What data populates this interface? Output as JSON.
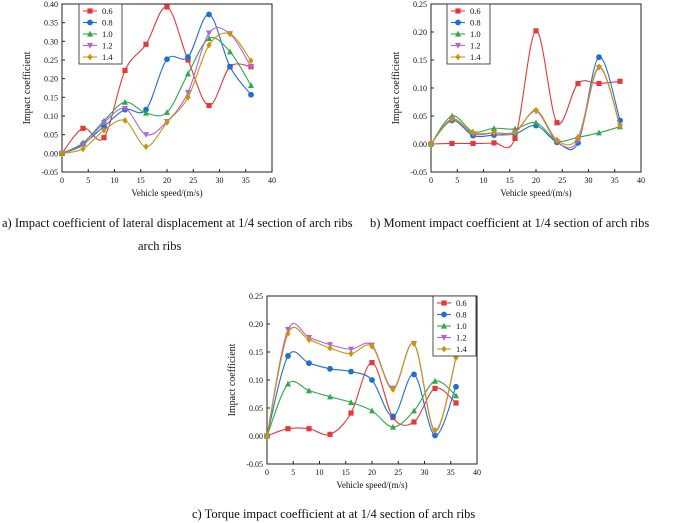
{
  "captions": {
    "a_line1": "a) Impact coefficient of lateral displacement at 1/4 section of arch ribs",
    "a_line2": "arch ribs",
    "b": "b) Moment impact coefficient at 1/4 section of arch ribs",
    "c": "c) Torque impact coefficient at at 1/4 section of arch ribs"
  },
  "chart_data": [
    {
      "type": "line",
      "id": "a",
      "xlabel": "Vehicle speed/(m/s)",
      "ylabel": "Impact coefficient",
      "xlim": [
        0,
        40
      ],
      "ylim": [
        -0.05,
        0.4
      ],
      "xticks": [
        "0",
        "5",
        "10",
        "15",
        "20",
        "25",
        "30",
        "35",
        "40"
      ],
      "yticks": [
        "-0.05",
        "0.00",
        "0.05",
        "0.10",
        "0.15",
        "0.20",
        "0.25",
        "0.30",
        "0.35",
        "0.40"
      ],
      "x": [
        0,
        4,
        8,
        12,
        16,
        20,
        24,
        28,
        32,
        36
      ],
      "series": [
        {
          "name": "0.6",
          "color": "#e5383b",
          "marker": "square",
          "values": [
            0.0,
            0.067,
            0.042,
            0.222,
            0.292,
            0.392,
            0.25,
            0.128,
            0.232,
            0.232
          ]
        },
        {
          "name": "0.8",
          "color": "#1f6fd1",
          "marker": "circle",
          "values": [
            0.0,
            0.025,
            0.072,
            0.117,
            0.117,
            0.252,
            0.258,
            0.372,
            0.232,
            0.157
          ]
        },
        {
          "name": "1.0",
          "color": "#2ea84a",
          "marker": "triangle",
          "values": [
            0.0,
            0.028,
            0.087,
            0.137,
            0.108,
            0.11,
            0.213,
            0.308,
            0.272,
            0.182
          ]
        },
        {
          "name": "1.2",
          "color": "#b263d8",
          "marker": "tri-down",
          "values": [
            0.0,
            0.022,
            0.082,
            0.12,
            0.05,
            0.085,
            0.163,
            0.322,
            0.32,
            0.232
          ]
        },
        {
          "name": "1.4",
          "color": "#c9940c",
          "marker": "diamond",
          "values": [
            0.0,
            0.012,
            0.062,
            0.088,
            0.018,
            0.083,
            0.15,
            0.29,
            0.32,
            0.248
          ]
        }
      ]
    },
    {
      "type": "line",
      "id": "b",
      "xlabel": "Vehicle speed/(m/s)",
      "ylabel": "Impact coefficient",
      "xlim": [
        0,
        40
      ],
      "ylim": [
        -0.05,
        0.25
      ],
      "xticks": [
        "0",
        "5",
        "10",
        "15",
        "20",
        "25",
        "30",
        "35",
        "40"
      ],
      "yticks": [
        "-0.05",
        "0.00",
        "0.05",
        "0.10",
        "0.15",
        "0.20",
        "0.25"
      ],
      "x": [
        0,
        4,
        8,
        12,
        16,
        20,
        24,
        28,
        32,
        36
      ],
      "series": [
        {
          "name": "0.6",
          "color": "#e5383b",
          "marker": "square",
          "values": [
            0.0,
            0.001,
            0.001,
            0.002,
            0.01,
            0.202,
            0.038,
            0.108,
            0.108,
            0.112
          ]
        },
        {
          "name": "0.8",
          "color": "#1f6fd1",
          "marker": "circle",
          "values": [
            0.0,
            0.042,
            0.015,
            0.016,
            0.018,
            0.033,
            0.003,
            0.002,
            0.155,
            0.042
          ]
        },
        {
          "name": "1.0",
          "color": "#2ea84a",
          "marker": "triangle",
          "values": [
            0.0,
            0.05,
            0.022,
            0.028,
            0.027,
            0.038,
            0.006,
            0.012,
            0.02,
            0.031
          ]
        },
        {
          "name": "1.2",
          "color": "#b263d8",
          "marker": "tri-down",
          "values": [
            0.0,
            0.045,
            0.018,
            0.02,
            0.022,
            0.058,
            0.004,
            0.006,
            0.136,
            0.032
          ]
        },
        {
          "name": "1.4",
          "color": "#c9940c",
          "marker": "diamond",
          "values": [
            0.0,
            0.044,
            0.02,
            0.02,
            0.02,
            0.06,
            0.007,
            0.012,
            0.138,
            0.032
          ]
        }
      ]
    },
    {
      "type": "line",
      "id": "c",
      "xlabel": "Vehicle speed/(m/s)",
      "ylabel": "Impact coefficient",
      "xlim": [
        0,
        40
      ],
      "ylim": [
        -0.05,
        0.25
      ],
      "xticks": [
        "0",
        "5",
        "10",
        "15",
        "20",
        "25",
        "30",
        "35",
        "40"
      ],
      "yticks": [
        "-0.05",
        "0.00",
        "0.05",
        "0.10",
        "0.15",
        "0.20",
        "0.25"
      ],
      "x": [
        0,
        4,
        8,
        12,
        16,
        20,
        24,
        28,
        32,
        36
      ],
      "series": [
        {
          "name": "0.6",
          "color": "#e5383b",
          "marker": "square",
          "values": [
            0.0,
            0.013,
            0.013,
            0.003,
            0.041,
            0.131,
            0.033,
            0.025,
            0.085,
            0.059
          ]
        },
        {
          "name": "0.8",
          "color": "#1f6fd1",
          "marker": "circle",
          "values": [
            0.0,
            0.143,
            0.13,
            0.12,
            0.115,
            0.1,
            0.035,
            0.11,
            0.001,
            0.088
          ]
        },
        {
          "name": "1.0",
          "color": "#2ea84a",
          "marker": "triangle",
          "values": [
            0.0,
            0.093,
            0.081,
            0.07,
            0.06,
            0.045,
            0.016,
            0.045,
            0.098,
            0.072
          ]
        },
        {
          "name": "1.2",
          "color": "#b263d8",
          "marker": "tri-down",
          "values": [
            0.0,
            0.19,
            0.176,
            0.163,
            0.155,
            0.162,
            0.085,
            0.165,
            0.008,
            0.14
          ]
        },
        {
          "name": "1.4",
          "color": "#c9940c",
          "marker": "diamond",
          "values": [
            0.0,
            0.183,
            0.172,
            0.157,
            0.147,
            0.16,
            0.083,
            0.165,
            0.01,
            0.14
          ]
        }
      ]
    }
  ]
}
